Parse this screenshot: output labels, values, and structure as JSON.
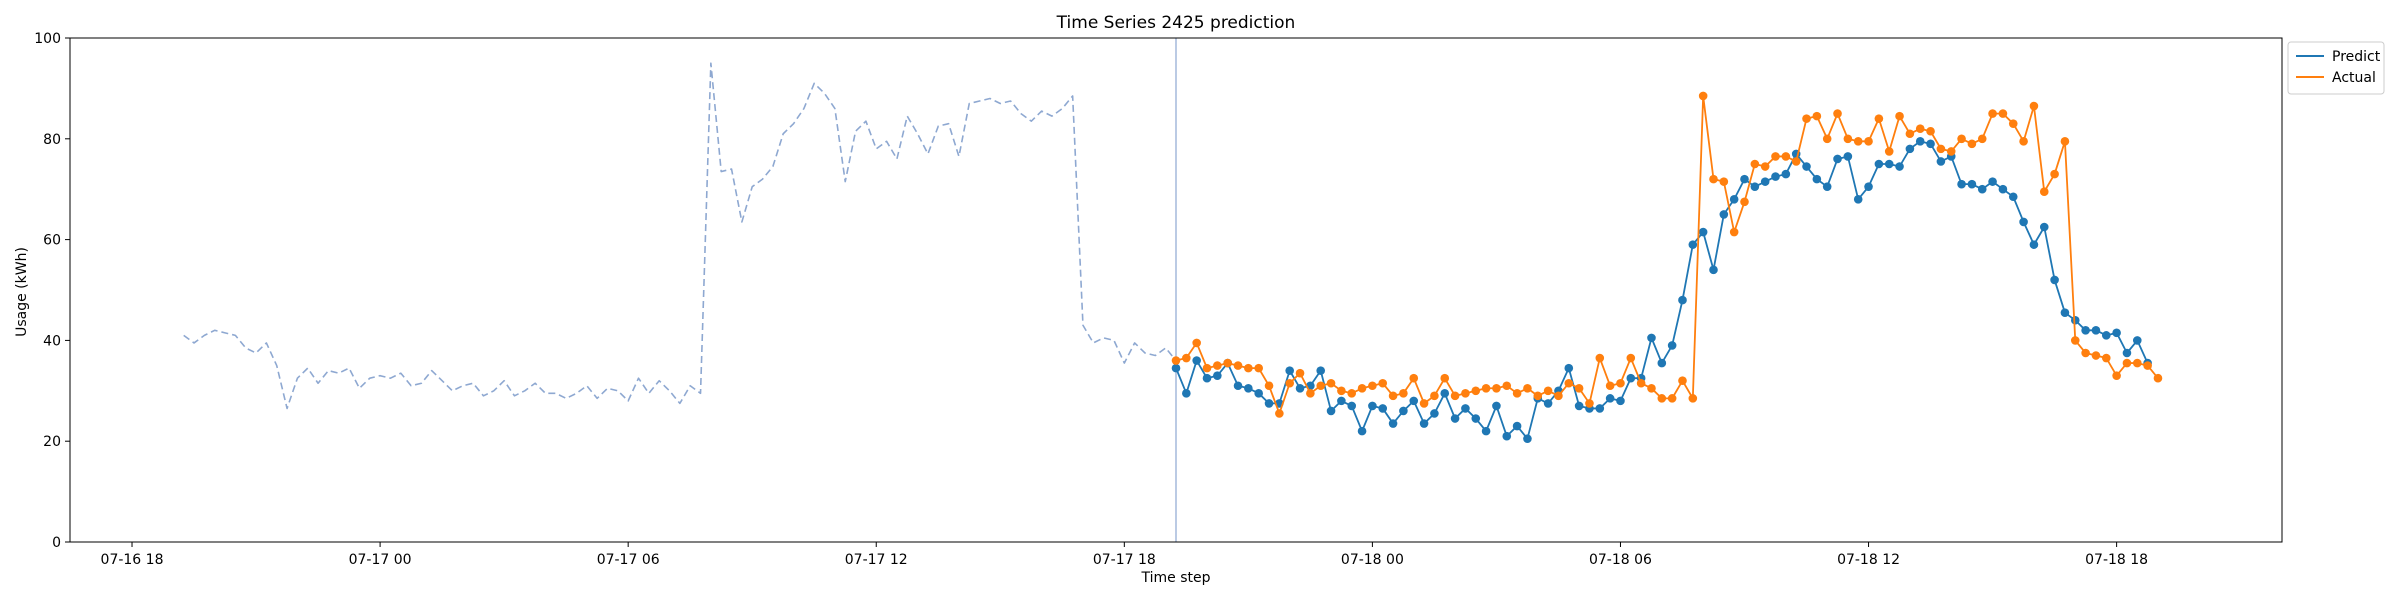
{
  "chart_data": {
    "type": "line",
    "title": "Time Series 2425 prediction",
    "xlabel": "Time step",
    "ylabel": "Usage (kWh)",
    "ylim": [
      0,
      100
    ],
    "yticks": [
      0,
      20,
      40,
      60,
      80,
      100
    ],
    "x_axis": {
      "type": "datetime",
      "start": "2024-07-16T16:30",
      "end": "2024-07-18T22:00",
      "ticks": [
        {
          "t": "2024-07-16T18:00",
          "label": "07-16 18"
        },
        {
          "t": "2024-07-17T00:00",
          "label": "07-17 00"
        },
        {
          "t": "2024-07-17T06:00",
          "label": "07-17 06"
        },
        {
          "t": "2024-07-17T12:00",
          "label": "07-17 12"
        },
        {
          "t": "2024-07-17T18:00",
          "label": "07-17 18"
        },
        {
          "t": "2024-07-18T00:00",
          "label": "07-18 00"
        },
        {
          "t": "2024-07-18T06:00",
          "label": "07-18 06"
        },
        {
          "t": "2024-07-18T12:00",
          "label": "07-18 12"
        },
        {
          "t": "2024-07-18T18:00",
          "label": "07-18 18"
        }
      ]
    },
    "grid": false,
    "legend": "top-right, outside plot",
    "forecast_start": "2024-07-17T19:15",
    "series": [
      {
        "name": "",
        "role": "history",
        "style": "dashed",
        "color": "#8ea8d1",
        "start": "2024-07-16T19:15",
        "step_minutes": 15,
        "values": [
          41,
          39.5,
          41,
          42,
          41.5,
          41,
          38.5,
          37.5,
          39.5,
          35,
          26.5,
          32.5,
          34.5,
          31.5,
          34,
          33.5,
          34.5,
          30.5,
          32.5,
          33,
          32.5,
          33.5,
          31,
          31.5,
          34,
          32,
          30,
          31,
          31.5,
          29,
          30,
          32,
          29,
          30,
          31.5,
          29.5,
          29.5,
          28.5,
          29.5,
          31,
          28.5,
          30.5,
          30,
          28,
          32.5,
          29.5,
          32,
          30,
          27.5,
          31,
          29.5,
          95,
          73.5,
          74,
          63.5,
          70.5,
          72,
          74.5,
          81,
          83,
          86,
          91,
          89,
          86,
          71.5,
          81.5,
          83.5,
          78,
          79.5,
          76,
          84.5,
          81,
          77,
          82.5,
          83,
          76.5,
          87,
          87.5,
          88,
          87,
          87.5,
          85,
          83.5,
          85.5,
          84.5,
          86,
          88.5,
          43,
          39.5,
          40.5,
          40,
          35.5,
          39.5,
          37.5,
          37,
          38.5,
          36
        ]
      },
      {
        "name": "Predict",
        "color": "#1f77b4",
        "start": "2024-07-17T19:15",
        "step_minutes": 15,
        "values": [
          34.5,
          29.5,
          36,
          32.5,
          33,
          35.5,
          31,
          30.5,
          29.5,
          27.5,
          27.5,
          34,
          30.5,
          31,
          34,
          26,
          28,
          27,
          22,
          27,
          26.5,
          23.5,
          26,
          28,
          23.5,
          25.5,
          29.5,
          24.5,
          26.5,
          24.5,
          22,
          27,
          21,
          23,
          20.5,
          28.5,
          27.5,
          30,
          34.5,
          27,
          26.5,
          26.5,
          28.5,
          28,
          32.5,
          32.5,
          40.5,
          35.5,
          39,
          48,
          59,
          61.5,
          54,
          65,
          68,
          72,
          70.5,
          71.5,
          72.5,
          73,
          77,
          74.5,
          72,
          70.5,
          76,
          76.5,
          68,
          70.5,
          75,
          75,
          74.5,
          78,
          79.5,
          79,
          75.5,
          76.5,
          71,
          71,
          70,
          71.5,
          70,
          68.5,
          63.5,
          59,
          62.5,
          52,
          45.5,
          44,
          42,
          42,
          41,
          41.5,
          37.5,
          40,
          35.5
        ]
      },
      {
        "name": "Actual",
        "color": "#ff7f0e",
        "start": "2024-07-17T19:15",
        "step_minutes": 15,
        "values": [
          36,
          36.5,
          39.5,
          34.5,
          35,
          35.5,
          35,
          34.5,
          34.5,
          31,
          25.5,
          31.5,
          33.5,
          29.5,
          31,
          31.5,
          30,
          29.5,
          30.5,
          31,
          31.5,
          29,
          29.5,
          32.5,
          27.5,
          29,
          32.5,
          29,
          29.5,
          30,
          30.5,
          30.5,
          31,
          29.5,
          30.5,
          29,
          30,
          29,
          31.5,
          30.5,
          27.5,
          36.5,
          31,
          31.5,
          36.5,
          31.5,
          30.5,
          28.5,
          28.5,
          32,
          28.5,
          88.5,
          72,
          71.5,
          61.5,
          67.5,
          75,
          74.5,
          76.5,
          76.5,
          75.5,
          84,
          84.5,
          80,
          85,
          80,
          79.5,
          79.5,
          84,
          77.5,
          84.5,
          81,
          82,
          81.5,
          78,
          77.5,
          80,
          79,
          80,
          85,
          85,
          83,
          79.5,
          86.5,
          69.5,
          73,
          79.5,
          40,
          37.5,
          37,
          36.5,
          33,
          35.5,
          35.5,
          35,
          32.5
        ]
      }
    ]
  }
}
